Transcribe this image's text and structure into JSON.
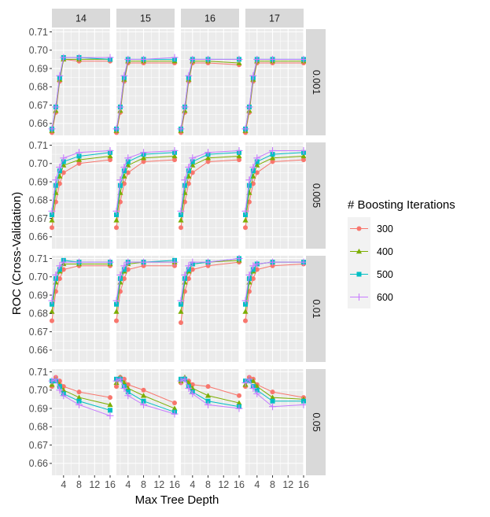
{
  "chart_data": {
    "type": "line",
    "xlabel": "Max Tree Depth",
    "ylabel": "ROC (Cross-Validation)",
    "x_ticks": [
      4,
      8,
      12,
      16
    ],
    "y_ticks": [
      0.66,
      0.67,
      0.68,
      0.69,
      0.7,
      0.71
    ],
    "y_tick_labels": [
      "0.66",
      "0.67",
      "0.68",
      "0.69",
      "0.70",
      "0.71"
    ],
    "xlim": [
      1,
      16
    ],
    "ylim": [
      0.6535,
      0.7115
    ],
    "grid": true,
    "legend": {
      "title": "# Boosting Iterations",
      "position": "right",
      "entries": [
        "300",
        "400",
        "500",
        "600"
      ]
    },
    "column_facets": [
      "14",
      "15",
      "16",
      "17"
    ],
    "row_facets": [
      "0.001",
      "0.005",
      "0.01",
      "0.05"
    ],
    "x": [
      1,
      2,
      3,
      4,
      8,
      16
    ],
    "series_colors": [
      "#F8766D",
      "#7CAE00",
      "#00BFC4",
      "#C77CFF"
    ],
    "series_markers": [
      "circle",
      "triangle",
      "square",
      "plus"
    ],
    "panels": [
      {
        "row": "0.001",
        "col": "14",
        "series": [
          {
            "name": "300",
            "values": [
              0.655,
              0.666,
              0.683,
              0.695,
              0.694,
              0.694
            ]
          },
          {
            "name": "400",
            "values": [
              0.656,
              0.667,
              0.684,
              0.695,
              0.695,
              0.695
            ]
          },
          {
            "name": "500",
            "values": [
              0.657,
              0.669,
              0.685,
              0.696,
              0.696,
              0.695
            ]
          },
          {
            "name": "600",
            "values": [
              0.657,
              0.669,
              0.686,
              0.696,
              0.696,
              0.696
            ]
          }
        ]
      },
      {
        "row": "0.001",
        "col": "15",
        "series": [
          {
            "name": "300",
            "values": [
              0.655,
              0.666,
              0.683,
              0.693,
              0.693,
              0.693
            ]
          },
          {
            "name": "400",
            "values": [
              0.656,
              0.667,
              0.684,
              0.694,
              0.694,
              0.694
            ]
          },
          {
            "name": "500",
            "values": [
              0.657,
              0.669,
              0.685,
              0.695,
              0.695,
              0.695
            ]
          },
          {
            "name": "600",
            "values": [
              0.657,
              0.669,
              0.686,
              0.695,
              0.695,
              0.696
            ]
          }
        ]
      },
      {
        "row": "0.001",
        "col": "16",
        "series": [
          {
            "name": "300",
            "values": [
              0.655,
              0.666,
              0.683,
              0.693,
              0.693,
              0.692
            ]
          },
          {
            "name": "400",
            "values": [
              0.656,
              0.667,
              0.684,
              0.694,
              0.694,
              0.693
            ]
          },
          {
            "name": "500",
            "values": [
              0.657,
              0.669,
              0.685,
              0.695,
              0.695,
              0.695
            ]
          },
          {
            "name": "600",
            "values": [
              0.657,
              0.669,
              0.686,
              0.695,
              0.695,
              0.695
            ]
          }
        ]
      },
      {
        "row": "0.001",
        "col": "17",
        "series": [
          {
            "name": "300",
            "values": [
              0.655,
              0.666,
              0.683,
              0.693,
              0.693,
              0.693
            ]
          },
          {
            "name": "400",
            "values": [
              0.656,
              0.667,
              0.684,
              0.694,
              0.694,
              0.694
            ]
          },
          {
            "name": "500",
            "values": [
              0.657,
              0.669,
              0.685,
              0.695,
              0.695,
              0.695
            ]
          },
          {
            "name": "600",
            "values": [
              0.657,
              0.669,
              0.686,
              0.695,
              0.695,
              0.695
            ]
          }
        ]
      },
      {
        "row": "0.005",
        "col": "14",
        "series": [
          {
            "name": "300",
            "values": [
              0.665,
              0.679,
              0.689,
              0.695,
              0.7,
              0.702
            ]
          },
          {
            "name": "400",
            "values": [
              0.669,
              0.684,
              0.693,
              0.699,
              0.702,
              0.704
            ]
          },
          {
            "name": "500",
            "values": [
              0.672,
              0.688,
              0.696,
              0.701,
              0.704,
              0.706
            ]
          },
          {
            "name": "600",
            "values": [
              0.674,
              0.691,
              0.698,
              0.703,
              0.706,
              0.707
            ]
          }
        ]
      },
      {
        "row": "0.005",
        "col": "15",
        "series": [
          {
            "name": "300",
            "values": [
              0.665,
              0.679,
              0.689,
              0.695,
              0.701,
              0.702
            ]
          },
          {
            "name": "400",
            "values": [
              0.669,
              0.684,
              0.693,
              0.699,
              0.703,
              0.704
            ]
          },
          {
            "name": "500",
            "values": [
              0.672,
              0.688,
              0.696,
              0.701,
              0.705,
              0.706
            ]
          },
          {
            "name": "600",
            "values": [
              0.674,
              0.691,
              0.698,
              0.703,
              0.706,
              0.707
            ]
          }
        ]
      },
      {
        "row": "0.005",
        "col": "16",
        "series": [
          {
            "name": "300",
            "values": [
              0.665,
              0.679,
              0.689,
              0.695,
              0.701,
              0.702
            ]
          },
          {
            "name": "400",
            "values": [
              0.669,
              0.684,
              0.693,
              0.699,
              0.703,
              0.704
            ]
          },
          {
            "name": "500",
            "values": [
              0.672,
              0.688,
              0.696,
              0.701,
              0.705,
              0.706
            ]
          },
          {
            "name": "600",
            "values": [
              0.674,
              0.691,
              0.698,
              0.703,
              0.706,
              0.707
            ]
          }
        ]
      },
      {
        "row": "0.005",
        "col": "17",
        "series": [
          {
            "name": "300",
            "values": [
              0.665,
              0.679,
              0.689,
              0.695,
              0.701,
              0.702
            ]
          },
          {
            "name": "400",
            "values": [
              0.669,
              0.684,
              0.693,
              0.699,
              0.703,
              0.704
            ]
          },
          {
            "name": "500",
            "values": [
              0.672,
              0.688,
              0.696,
              0.701,
              0.705,
              0.706
            ]
          },
          {
            "name": "600",
            "values": [
              0.674,
              0.691,
              0.698,
              0.703,
              0.707,
              0.707
            ]
          }
        ]
      },
      {
        "row": "0.01",
        "col": "14",
        "series": [
          {
            "name": "300",
            "values": [
              0.676,
              0.692,
              0.699,
              0.704,
              0.706,
              0.706
            ]
          },
          {
            "name": "400",
            "values": [
              0.681,
              0.697,
              0.703,
              0.707,
              0.707,
              0.707
            ]
          },
          {
            "name": "500",
            "values": [
              0.685,
              0.699,
              0.704,
              0.709,
              0.708,
              0.708
            ]
          },
          {
            "name": "600",
            "values": [
              0.687,
              0.701,
              0.706,
              0.708,
              0.708,
              0.708
            ]
          }
        ]
      },
      {
        "row": "0.01",
        "col": "15",
        "series": [
          {
            "name": "300",
            "values": [
              0.676,
              0.692,
              0.699,
              0.704,
              0.706,
              0.706
            ]
          },
          {
            "name": "400",
            "values": [
              0.681,
              0.697,
              0.703,
              0.707,
              0.708,
              0.708
            ]
          },
          {
            "name": "500",
            "values": [
              0.685,
              0.699,
              0.704,
              0.708,
              0.708,
              0.709
            ]
          },
          {
            "name": "600",
            "values": [
              0.687,
              0.701,
              0.706,
              0.708,
              0.708,
              0.708
            ]
          }
        ]
      },
      {
        "row": "0.01",
        "col": "16",
        "series": [
          {
            "name": "300",
            "values": [
              0.675,
              0.692,
              0.699,
              0.704,
              0.706,
              0.708
            ]
          },
          {
            "name": "400",
            "values": [
              0.681,
              0.697,
              0.703,
              0.707,
              0.708,
              0.709
            ]
          },
          {
            "name": "500",
            "values": [
              0.685,
              0.699,
              0.704,
              0.707,
              0.708,
              0.71
            ]
          },
          {
            "name": "600",
            "values": [
              0.687,
              0.701,
              0.706,
              0.708,
              0.708,
              0.71
            ]
          }
        ]
      },
      {
        "row": "0.01",
        "col": "17",
        "series": [
          {
            "name": "300",
            "values": [
              0.676,
              0.692,
              0.699,
              0.704,
              0.706,
              0.707
            ]
          },
          {
            "name": "400",
            "values": [
              0.681,
              0.697,
              0.703,
              0.707,
              0.708,
              0.708
            ]
          },
          {
            "name": "500",
            "values": [
              0.685,
              0.699,
              0.704,
              0.707,
              0.708,
              0.708
            ]
          },
          {
            "name": "600",
            "values": [
              0.687,
              0.701,
              0.706,
              0.707,
              0.708,
              0.708
            ]
          }
        ]
      },
      {
        "row": "0.05",
        "col": "14",
        "series": [
          {
            "name": "300",
            "values": [
              0.702,
              0.707,
              0.705,
              0.702,
              0.699,
              0.696
            ]
          },
          {
            "name": "400",
            "values": [
              0.703,
              0.706,
              0.703,
              0.7,
              0.696,
              0.692
            ]
          },
          {
            "name": "500",
            "values": [
              0.705,
              0.705,
              0.702,
              0.698,
              0.694,
              0.689
            ]
          },
          {
            "name": "600",
            "values": [
              0.705,
              0.706,
              0.7,
              0.697,
              0.692,
              0.686
            ]
          }
        ]
      },
      {
        "row": "0.05",
        "col": "15",
        "series": [
          {
            "name": "300",
            "values": [
              0.702,
              0.707,
              0.706,
              0.703,
              0.7,
              0.693
            ]
          },
          {
            "name": "400",
            "values": [
              0.704,
              0.707,
              0.704,
              0.701,
              0.697,
              0.69
            ]
          },
          {
            "name": "500",
            "values": [
              0.706,
              0.706,
              0.702,
              0.699,
              0.694,
              0.688
            ]
          },
          {
            "name": "600",
            "values": [
              0.705,
              0.706,
              0.701,
              0.697,
              0.692,
              0.687
            ]
          }
        ]
      },
      {
        "row": "0.05",
        "col": "16",
        "series": [
          {
            "name": "300",
            "values": [
              0.704,
              0.706,
              0.705,
              0.703,
              0.702,
              0.697
            ]
          },
          {
            "name": "400",
            "values": [
              0.705,
              0.707,
              0.704,
              0.701,
              0.697,
              0.693
            ]
          },
          {
            "name": "500",
            "values": [
              0.706,
              0.706,
              0.702,
              0.699,
              0.694,
              0.691
            ]
          },
          {
            "name": "600",
            "values": [
              0.705,
              0.706,
              0.701,
              0.698,
              0.692,
              0.69
            ]
          }
        ]
      },
      {
        "row": "0.05",
        "col": "17",
        "series": [
          {
            "name": "300",
            "values": [
              0.702,
              0.707,
              0.706,
              0.703,
              0.699,
              0.696
            ]
          },
          {
            "name": "400",
            "values": [
              0.703,
              0.706,
              0.705,
              0.702,
              0.696,
              0.695
            ]
          },
          {
            "name": "500",
            "values": [
              0.705,
              0.705,
              0.702,
              0.7,
              0.694,
              0.694
            ]
          },
          {
            "name": "600",
            "values": [
              0.704,
              0.706,
              0.701,
              0.698,
              0.691,
              0.692
            ]
          }
        ]
      }
    ]
  }
}
